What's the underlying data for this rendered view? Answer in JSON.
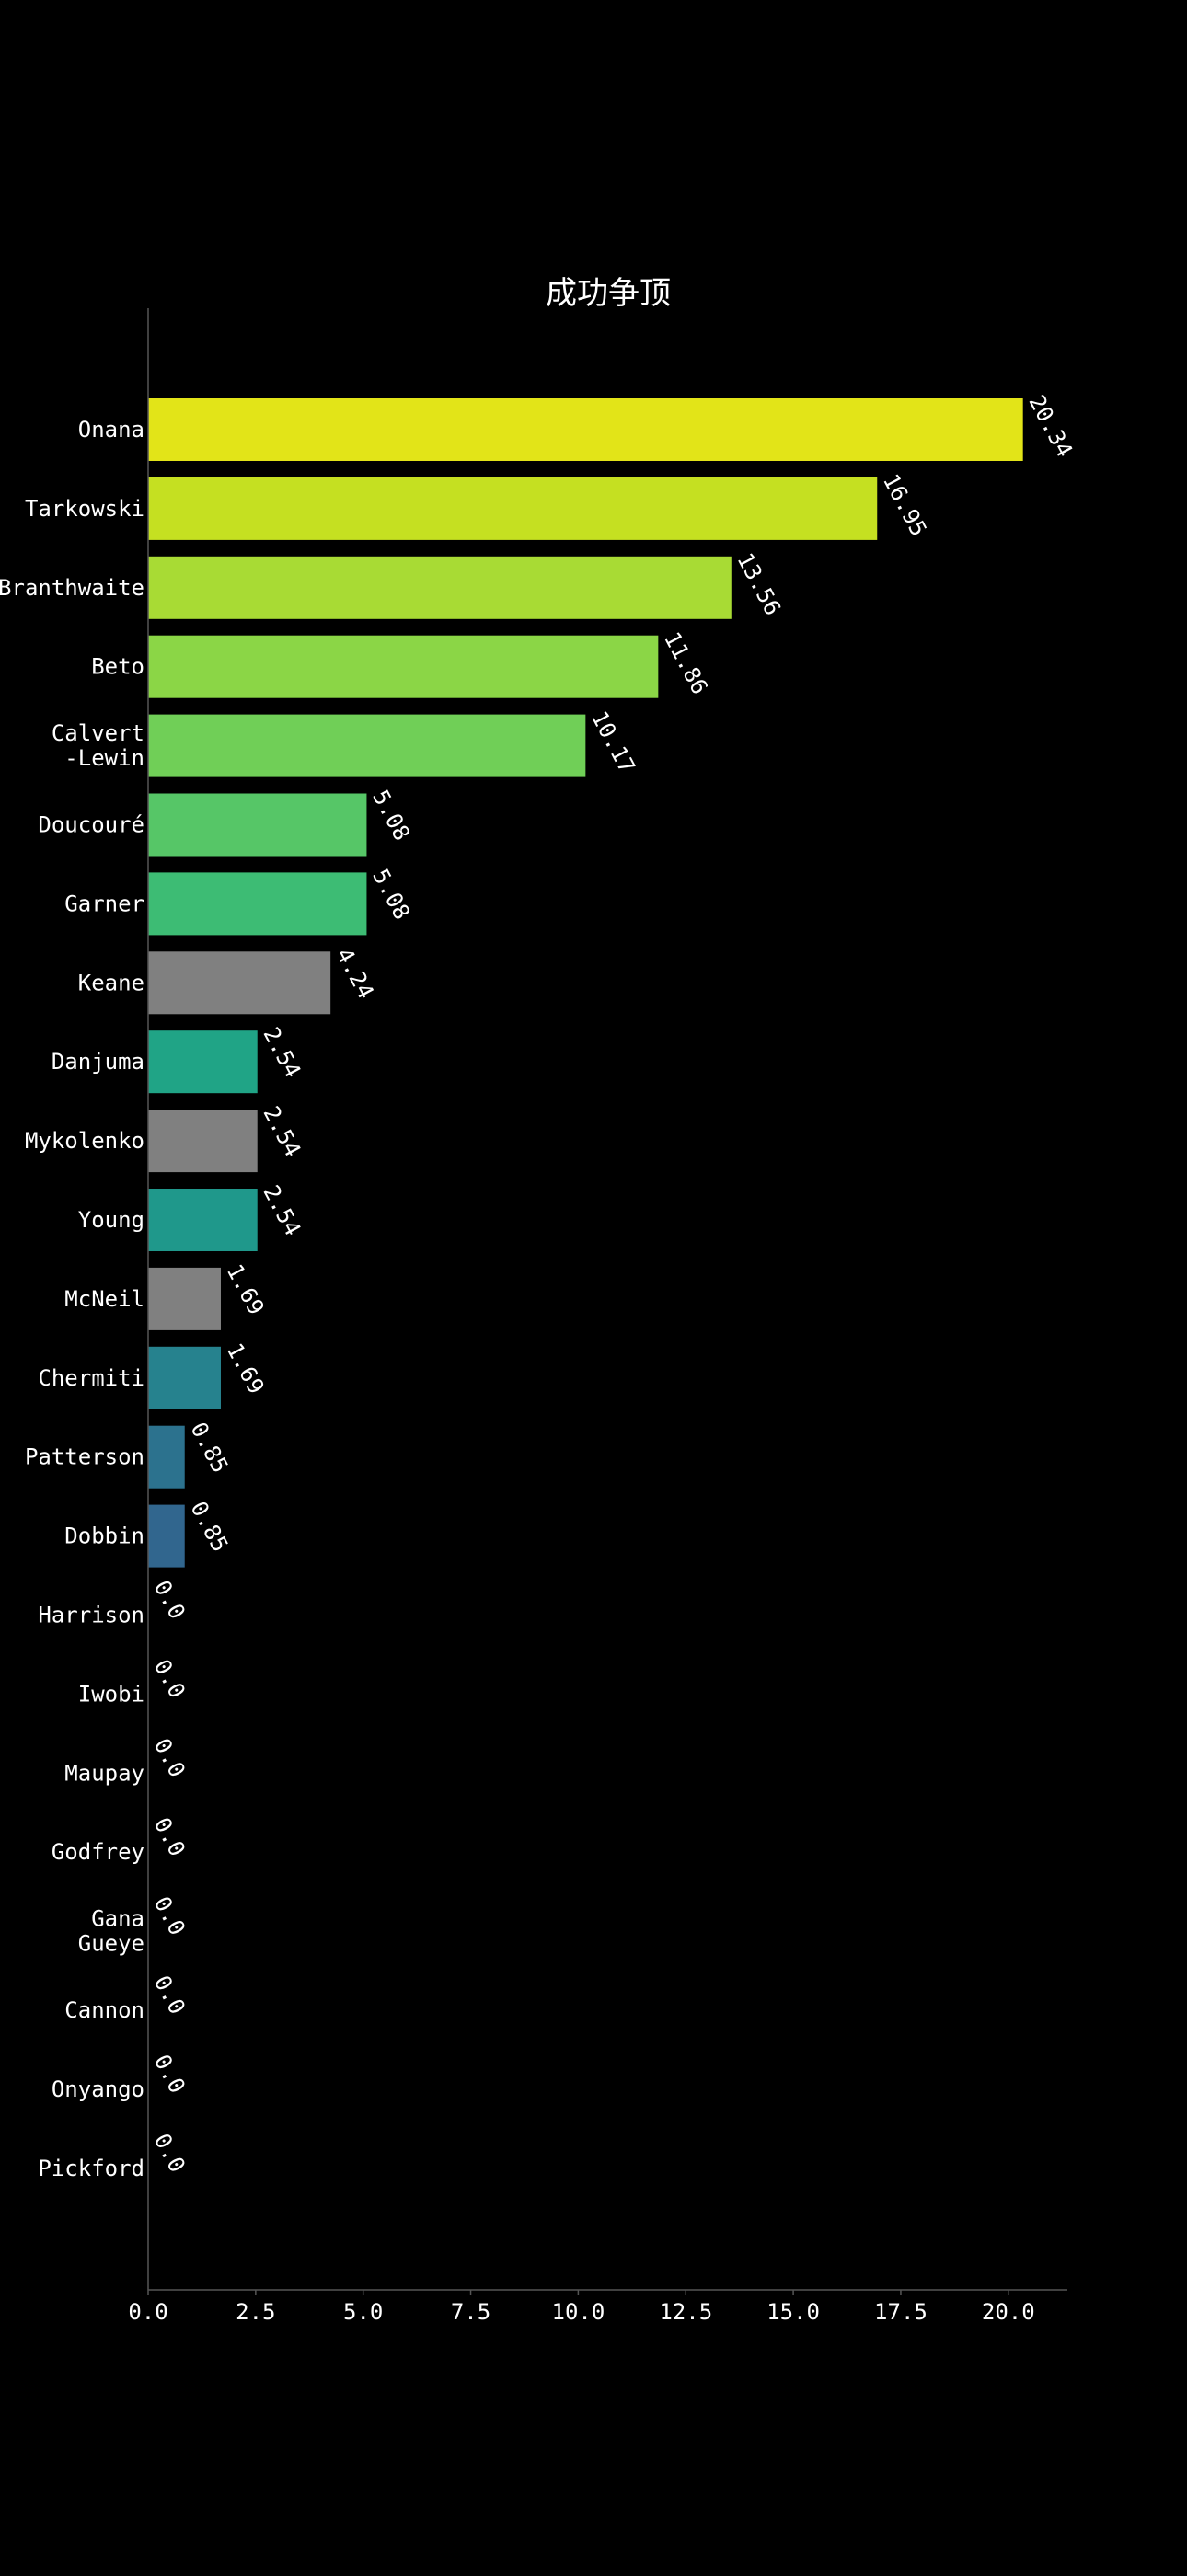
{
  "chart_data": {
    "type": "bar",
    "orientation": "horizontal",
    "title": "成功争顶",
    "xlabel": "",
    "ylabel": "",
    "xlim": [
      0,
      21.36
    ],
    "xticks": [
      "0.0",
      "2.5",
      "5.0",
      "7.5",
      "10.0",
      "12.5",
      "15.0",
      "17.5",
      "20.0"
    ],
    "grid": false,
    "legend": "none",
    "background": "#000000",
    "text_color": "#ffffff",
    "categories": [
      {
        "label": [
          "Onana"
        ],
        "value": 20.34,
        "value_label": "20.34",
        "color": "#e2e418"
      },
      {
        "label": [
          "Tarkowski"
        ],
        "value": 16.95,
        "value_label": "16.95",
        "color": "#c5e021"
      },
      {
        "label": [
          "Branthwaite"
        ],
        "value": 13.56,
        "value_label": "13.56",
        "color": "#a8db34"
      },
      {
        "label": [
          "Beto"
        ],
        "value": 11.86,
        "value_label": "11.86",
        "color": "#8bd646"
      },
      {
        "label": [
          "Calvert",
          "-Lewin"
        ],
        "value": 10.17,
        "value_label": "10.17",
        "color": "#70cf57"
      },
      {
        "label": [
          "Doucouré"
        ],
        "value": 5.08,
        "value_label": "5.08",
        "color": "#56c667"
      },
      {
        "label": [
          "Garner"
        ],
        "value": 5.08,
        "value_label": "5.08",
        "color": "#3dbc74"
      },
      {
        "label": [
          "Keane"
        ],
        "value": 4.24,
        "value_label": "4.24",
        "color": "#808080"
      },
      {
        "label": [
          "Danjuma"
        ],
        "value": 2.54,
        "value_label": "2.54",
        "color": "#20a486"
      },
      {
        "label": [
          "Mykolenko"
        ],
        "value": 2.54,
        "value_label": "2.54",
        "color": "#808080"
      },
      {
        "label": [
          "Young"
        ],
        "value": 2.54,
        "value_label": "2.54",
        "color": "#1f988b"
      },
      {
        "label": [
          "McNeil"
        ],
        "value": 1.69,
        "value_label": "1.69",
        "color": "#808080"
      },
      {
        "label": [
          "Chermiti"
        ],
        "value": 1.69,
        "value_label": "1.69",
        "color": "#26828e"
      },
      {
        "label": [
          "Patterson"
        ],
        "value": 0.85,
        "value_label": "0.85",
        "color": "#2c728e"
      },
      {
        "label": [
          "Dobbin"
        ],
        "value": 0.85,
        "value_label": "0.85",
        "color": "#31668e"
      },
      {
        "label": [
          "Harrison"
        ],
        "value": 0.0,
        "value_label": "0.0",
        "color": "#355f8d"
      },
      {
        "label": [
          "Iwobi"
        ],
        "value": 0.0,
        "value_label": "0.0",
        "color": "#39558c"
      },
      {
        "label": [
          "Maupay"
        ],
        "value": 0.0,
        "value_label": "0.0",
        "color": "#3e4a89"
      },
      {
        "label": [
          "Godfrey"
        ],
        "value": 0.0,
        "value_label": "0.0",
        "color": "#433e85"
      },
      {
        "label": [
          "Gana",
          "Gueye"
        ],
        "value": 0.0,
        "value_label": "0.0",
        "color": "#46327e"
      },
      {
        "label": [
          "Cannon"
        ],
        "value": 0.0,
        "value_label": "0.0",
        "color": "#482575"
      },
      {
        "label": [
          "Onyango"
        ],
        "value": 0.0,
        "value_label": "0.0",
        "color": "#481769"
      },
      {
        "label": [
          "Pickford"
        ],
        "value": 0.0,
        "value_label": "0.0",
        "color": "#440154"
      }
    ]
  }
}
